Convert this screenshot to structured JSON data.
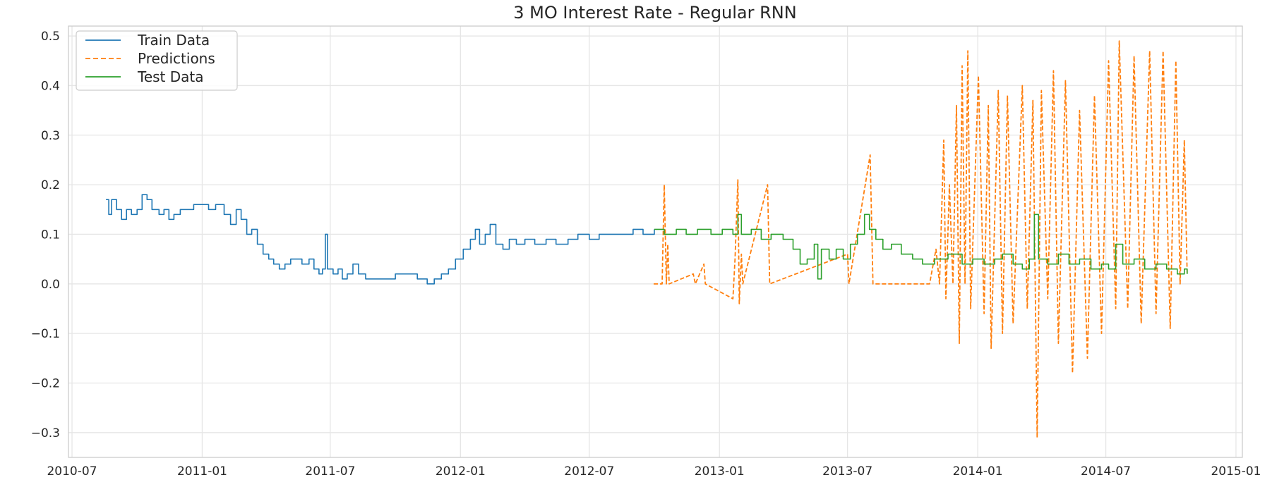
{
  "chart_data": {
    "type": "line",
    "title": "3 MO Interest Rate - Regular RNN",
    "xlabel": "",
    "ylabel": "",
    "xlim": [
      "2010-06-26",
      "2015-01-10"
    ],
    "ylim": [
      -0.35,
      0.52
    ],
    "grid": true,
    "legend": "top-left",
    "x_ticks": [
      "2010-07",
      "2011-01",
      "2011-07",
      "2012-01",
      "2012-07",
      "2013-01",
      "2013-07",
      "2014-01",
      "2014-07",
      "2015-01"
    ],
    "y_ticks": [
      "0.5",
      "0.4",
      "0.3",
      "0.2",
      "0.1",
      "0.0",
      "−0.1",
      "−0.2",
      "−0.3"
    ],
    "y_tick_values": [
      0.5,
      0.4,
      0.3,
      0.2,
      0.1,
      0.0,
      -0.1,
      -0.2,
      -0.3
    ],
    "colors": {
      "train": "#1f77b4",
      "predictions": "#ff7f0e",
      "test": "#2ca02c"
    },
    "series": [
      {
        "name": "Train Data",
        "style": "solid",
        "points": [
          [
            "2010-08-18",
            0.17
          ],
          [
            "2010-08-22",
            0.14
          ],
          [
            "2010-08-26",
            0.17
          ],
          [
            "2010-09-02",
            0.15
          ],
          [
            "2010-09-09",
            0.13
          ],
          [
            "2010-09-16",
            0.15
          ],
          [
            "2010-09-23",
            0.14
          ],
          [
            "2010-10-01",
            0.15
          ],
          [
            "2010-10-08",
            0.18
          ],
          [
            "2010-10-15",
            0.17
          ],
          [
            "2010-10-22",
            0.15
          ],
          [
            "2010-11-01",
            0.14
          ],
          [
            "2010-11-08",
            0.15
          ],
          [
            "2010-11-15",
            0.13
          ],
          [
            "2010-11-22",
            0.14
          ],
          [
            "2010-12-01",
            0.15
          ],
          [
            "2010-12-10",
            0.15
          ],
          [
            "2010-12-20",
            0.16
          ],
          [
            "2011-01-01",
            0.16
          ],
          [
            "2011-01-10",
            0.15
          ],
          [
            "2011-01-20",
            0.16
          ],
          [
            "2011-02-01",
            0.14
          ],
          [
            "2011-02-10",
            0.12
          ],
          [
            "2011-02-18",
            0.15
          ],
          [
            "2011-02-25",
            0.13
          ],
          [
            "2011-03-05",
            0.1
          ],
          [
            "2011-03-12",
            0.11
          ],
          [
            "2011-03-20",
            0.08
          ],
          [
            "2011-03-28",
            0.06
          ],
          [
            "2011-04-05",
            0.05
          ],
          [
            "2011-04-12",
            0.04
          ],
          [
            "2011-04-20",
            0.03
          ],
          [
            "2011-04-28",
            0.04
          ],
          [
            "2011-05-06",
            0.05
          ],
          [
            "2011-05-14",
            0.05
          ],
          [
            "2011-05-22",
            0.04
          ],
          [
            "2011-06-01",
            0.05
          ],
          [
            "2011-06-08",
            0.03
          ],
          [
            "2011-06-15",
            0.02
          ],
          [
            "2011-06-20",
            0.03
          ],
          [
            "2011-06-24",
            0.1
          ],
          [
            "2011-06-27",
            0.03
          ],
          [
            "2011-07-05",
            0.02
          ],
          [
            "2011-07-12",
            0.03
          ],
          [
            "2011-07-18",
            0.01
          ],
          [
            "2011-07-25",
            0.02
          ],
          [
            "2011-08-02",
            0.04
          ],
          [
            "2011-08-10",
            0.02
          ],
          [
            "2011-08-20",
            0.01
          ],
          [
            "2011-09-01",
            0.01
          ],
          [
            "2011-09-15",
            0.01
          ],
          [
            "2011-10-01",
            0.02
          ],
          [
            "2011-10-15",
            0.02
          ],
          [
            "2011-11-01",
            0.01
          ],
          [
            "2011-11-15",
            0.0
          ],
          [
            "2011-11-25",
            0.01
          ],
          [
            "2011-12-05",
            0.02
          ],
          [
            "2011-12-15",
            0.03
          ],
          [
            "2011-12-25",
            0.05
          ],
          [
            "2012-01-05",
            0.07
          ],
          [
            "2012-01-15",
            0.09
          ],
          [
            "2012-01-22",
            0.11
          ],
          [
            "2012-01-28",
            0.08
          ],
          [
            "2012-02-05",
            0.1
          ],
          [
            "2012-02-12",
            0.12
          ],
          [
            "2012-02-20",
            0.08
          ],
          [
            "2012-03-01",
            0.07
          ],
          [
            "2012-03-10",
            0.09
          ],
          [
            "2012-03-20",
            0.08
          ],
          [
            "2012-04-01",
            0.09
          ],
          [
            "2012-04-15",
            0.08
          ],
          [
            "2012-05-01",
            0.09
          ],
          [
            "2012-05-15",
            0.08
          ],
          [
            "2012-06-01",
            0.09
          ],
          [
            "2012-06-15",
            0.1
          ],
          [
            "2012-07-01",
            0.09
          ],
          [
            "2012-07-15",
            0.1
          ],
          [
            "2012-08-01",
            0.1
          ],
          [
            "2012-08-15",
            0.1
          ],
          [
            "2012-09-01",
            0.11
          ],
          [
            "2012-09-15",
            0.1
          ],
          [
            "2012-10-01",
            0.11
          ]
        ]
      },
      {
        "name": "Predictions",
        "style": "dashed",
        "points": [
          [
            "2012-09-30",
            0.0
          ],
          [
            "2012-10-12",
            0.0
          ],
          [
            "2012-10-15",
            0.2
          ],
          [
            "2012-10-18",
            0.0
          ],
          [
            "2012-10-20",
            0.08
          ],
          [
            "2012-10-22",
            0.0
          ],
          [
            "2012-11-25",
            0.02
          ],
          [
            "2012-11-28",
            0.0
          ],
          [
            "2012-12-10",
            0.04
          ],
          [
            "2012-12-12",
            0.0
          ],
          [
            "2013-01-20",
            -0.03
          ],
          [
            "2013-01-23",
            0.05
          ],
          [
            "2013-01-27",
            0.21
          ],
          [
            "2013-01-29",
            -0.04
          ],
          [
            "2013-02-01",
            0.06
          ],
          [
            "2013-02-03",
            0.0
          ],
          [
            "2013-03-10",
            0.2
          ],
          [
            "2013-03-13",
            0.0
          ],
          [
            "2013-07-01",
            0.06
          ],
          [
            "2013-07-03",
            0.0
          ],
          [
            "2013-08-02",
            0.26
          ],
          [
            "2013-08-06",
            0.0
          ],
          [
            "2013-10-25",
            0.0
          ],
          [
            "2013-11-03",
            0.07
          ],
          [
            "2013-11-08",
            0.0
          ],
          [
            "2013-11-14",
            0.29
          ],
          [
            "2013-11-17",
            -0.03
          ],
          [
            "2013-11-22",
            0.2
          ],
          [
            "2013-11-27",
            0.0
          ],
          [
            "2013-12-02",
            0.36
          ],
          [
            "2013-12-06",
            -0.12
          ],
          [
            "2013-12-10",
            0.44
          ],
          [
            "2013-12-14",
            0.0
          ],
          [
            "2013-12-18",
            0.47
          ],
          [
            "2013-12-22",
            -0.05
          ],
          [
            "2014-01-02",
            0.42
          ],
          [
            "2014-01-10",
            -0.06
          ],
          [
            "2014-01-16",
            0.36
          ],
          [
            "2014-01-20",
            -0.13
          ],
          [
            "2014-01-30",
            0.39
          ],
          [
            "2014-02-05",
            -0.1
          ],
          [
            "2014-02-12",
            0.38
          ],
          [
            "2014-02-20",
            -0.08
          ],
          [
            "2014-03-05",
            0.4
          ],
          [
            "2014-03-12",
            -0.05
          ],
          [
            "2014-03-20",
            0.37
          ],
          [
            "2014-03-26",
            -0.31
          ],
          [
            "2014-04-01",
            0.39
          ],
          [
            "2014-04-10",
            -0.03
          ],
          [
            "2014-04-18",
            0.43
          ],
          [
            "2014-04-25",
            -0.12
          ],
          [
            "2014-05-05",
            0.41
          ],
          [
            "2014-05-15",
            -0.18
          ],
          [
            "2014-05-25",
            0.35
          ],
          [
            "2014-06-05",
            -0.15
          ],
          [
            "2014-06-15",
            0.38
          ],
          [
            "2014-06-25",
            -0.1
          ],
          [
            "2014-07-05",
            0.45
          ],
          [
            "2014-07-15",
            -0.05
          ],
          [
            "2014-07-20",
            0.49
          ],
          [
            "2014-08-01",
            -0.05
          ],
          [
            "2014-08-10",
            0.46
          ],
          [
            "2014-08-20",
            -0.08
          ],
          [
            "2014-09-01",
            0.47
          ],
          [
            "2014-09-10",
            -0.06
          ],
          [
            "2014-09-20",
            0.47
          ],
          [
            "2014-09-30",
            -0.09
          ],
          [
            "2014-10-08",
            0.45
          ],
          [
            "2014-10-14",
            0.0
          ],
          [
            "2014-10-20",
            0.29
          ],
          [
            "2014-10-24",
            0.02
          ]
        ]
      },
      {
        "name": "Test Data",
        "style": "solid",
        "points": [
          [
            "2012-10-01",
            0.11
          ],
          [
            "2012-10-15",
            0.1
          ],
          [
            "2012-11-01",
            0.11
          ],
          [
            "2012-11-15",
            0.1
          ],
          [
            "2012-12-01",
            0.11
          ],
          [
            "2012-12-20",
            0.1
          ],
          [
            "2013-01-05",
            0.11
          ],
          [
            "2013-01-20",
            0.1
          ],
          [
            "2013-01-27",
            0.14
          ],
          [
            "2013-02-01",
            0.1
          ],
          [
            "2013-02-15",
            0.11
          ],
          [
            "2013-03-01",
            0.09
          ],
          [
            "2013-03-15",
            0.1
          ],
          [
            "2013-04-01",
            0.09
          ],
          [
            "2013-04-15",
            0.07
          ],
          [
            "2013-04-25",
            0.04
          ],
          [
            "2013-05-05",
            0.05
          ],
          [
            "2013-05-15",
            0.08
          ],
          [
            "2013-05-20",
            0.01
          ],
          [
            "2013-05-25",
            0.07
          ],
          [
            "2013-06-05",
            0.05
          ],
          [
            "2013-06-15",
            0.07
          ],
          [
            "2013-06-25",
            0.05
          ],
          [
            "2013-07-05",
            0.08
          ],
          [
            "2013-07-15",
            0.1
          ],
          [
            "2013-07-25",
            0.14
          ],
          [
            "2013-08-01",
            0.11
          ],
          [
            "2013-08-10",
            0.09
          ],
          [
            "2013-08-20",
            0.07
          ],
          [
            "2013-09-01",
            0.08
          ],
          [
            "2013-09-15",
            0.06
          ],
          [
            "2013-10-01",
            0.05
          ],
          [
            "2013-10-15",
            0.04
          ],
          [
            "2013-11-01",
            0.05
          ],
          [
            "2013-11-20",
            0.06
          ],
          [
            "2013-12-10",
            0.04
          ],
          [
            "2013-12-25",
            0.05
          ],
          [
            "2014-01-10",
            0.04
          ],
          [
            "2014-01-25",
            0.05
          ],
          [
            "2014-02-05",
            0.06
          ],
          [
            "2014-02-20",
            0.04
          ],
          [
            "2014-03-05",
            0.03
          ],
          [
            "2014-03-15",
            0.05
          ],
          [
            "2014-03-22",
            0.14
          ],
          [
            "2014-03-28",
            0.05
          ],
          [
            "2014-04-10",
            0.04
          ],
          [
            "2014-04-25",
            0.06
          ],
          [
            "2014-05-10",
            0.04
          ],
          [
            "2014-05-25",
            0.05
          ],
          [
            "2014-06-10",
            0.03
          ],
          [
            "2014-06-25",
            0.04
          ],
          [
            "2014-07-05",
            0.03
          ],
          [
            "2014-07-15",
            0.08
          ],
          [
            "2014-07-25",
            0.04
          ],
          [
            "2014-08-10",
            0.05
          ],
          [
            "2014-08-25",
            0.03
          ],
          [
            "2014-09-10",
            0.04
          ],
          [
            "2014-09-25",
            0.03
          ],
          [
            "2014-10-10",
            0.02
          ],
          [
            "2014-10-20",
            0.03
          ],
          [
            "2014-10-24",
            0.02
          ]
        ]
      }
    ]
  }
}
